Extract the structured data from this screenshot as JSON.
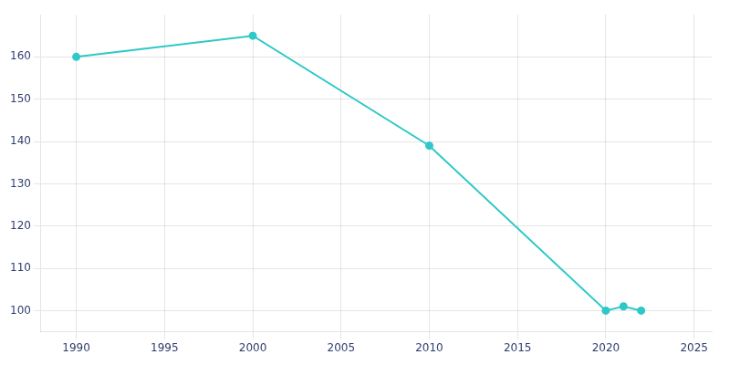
{
  "chart_data": {
    "type": "line",
    "x": [
      1990,
      2000,
      2010,
      2020,
      2021,
      2022
    ],
    "values": [
      160,
      165,
      139,
      100,
      101,
      100
    ],
    "color": "#2ec8c8",
    "marker": "circle",
    "xlim": [
      1988,
      2026
    ],
    "ylim": [
      95,
      170
    ],
    "xticks": [
      1990,
      1995,
      2000,
      2005,
      2010,
      2015,
      2020,
      2025
    ],
    "yticks": [
      100,
      110,
      120,
      130,
      140,
      150,
      160
    ],
    "grid": true
  }
}
